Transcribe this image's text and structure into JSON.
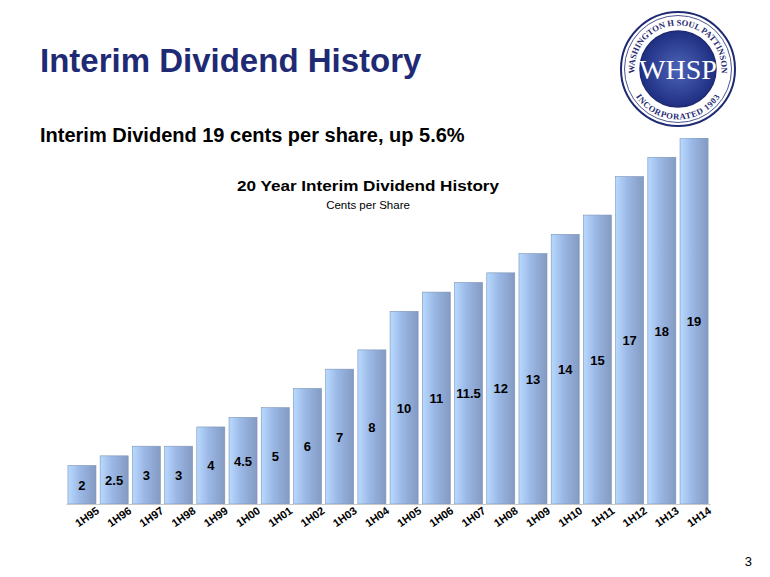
{
  "slide": {
    "heading": "Interim Dividend History",
    "headline": "Interim Dividend 19 cents per share, up 5.6%",
    "logo": {
      "top_text": "WASHINGTON H SOUL PATTINSON",
      "center_text": "WHSP",
      "bottom_text": "INCORPORATED 1903"
    },
    "page_number": "3"
  },
  "chart_data": {
    "type": "bar",
    "title": "20 Year Interim Dividend History",
    "subtitle": "Cents per Share",
    "categories": [
      "1H95",
      "1H96",
      "1H97",
      "1H98",
      "1H99",
      "1H00",
      "1H01",
      "1H02",
      "1H03",
      "1H04",
      "1H05",
      "1H06",
      "1H07",
      "1H08",
      "1H09",
      "1H10",
      "1H11",
      "1H12",
      "1H13",
      "1H14"
    ],
    "values": [
      2,
      2.5,
      3,
      3,
      4,
      4.5,
      5,
      6,
      7,
      8,
      10,
      11,
      11.5,
      12,
      13,
      14,
      15,
      17,
      18,
      19
    ],
    "color": "#9ab6e4",
    "ylim": [
      0,
      19
    ],
    "grid": false,
    "data_labels": true,
    "tick_labels": "x"
  }
}
